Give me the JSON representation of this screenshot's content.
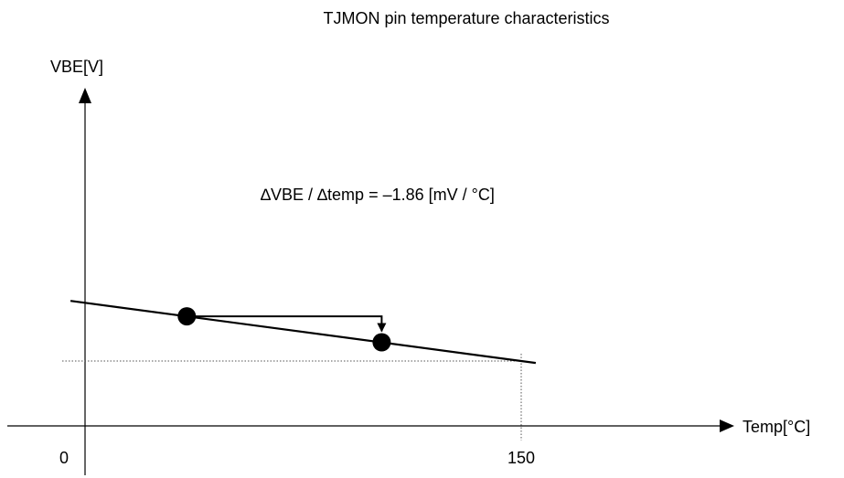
{
  "chart_data": {
    "type": "line",
    "title": "TJMON pin temperature characteristics",
    "xlabel": "Temp[°C]",
    "ylabel": "VBE[V]",
    "x_ticks": [
      {
        "value": 0,
        "label": "0"
      },
      {
        "value": 150,
        "label": "150"
      }
    ],
    "series": [
      {
        "x": [
          -5,
          155
        ],
        "y": [
          0.6,
          0.302
        ]
      }
    ],
    "markers": [
      {
        "x": 35,
        "y": 0.5256
      },
      {
        "x": 102,
        "y": 0.401
      }
    ],
    "annotation": {
      "text": "∆VBE / ∆temp = –1.86 [mV / °C]",
      "slope_mV_per_C": -1.86
    },
    "reference": {
      "x": 150,
      "y": 0.3113
    },
    "xlim": [
      -25,
      230
    ],
    "ylim": [
      0,
      0.8
    ],
    "grid": false,
    "colors": {
      "line": "#000000",
      "marker": "#000000",
      "guide": "#555555"
    }
  }
}
